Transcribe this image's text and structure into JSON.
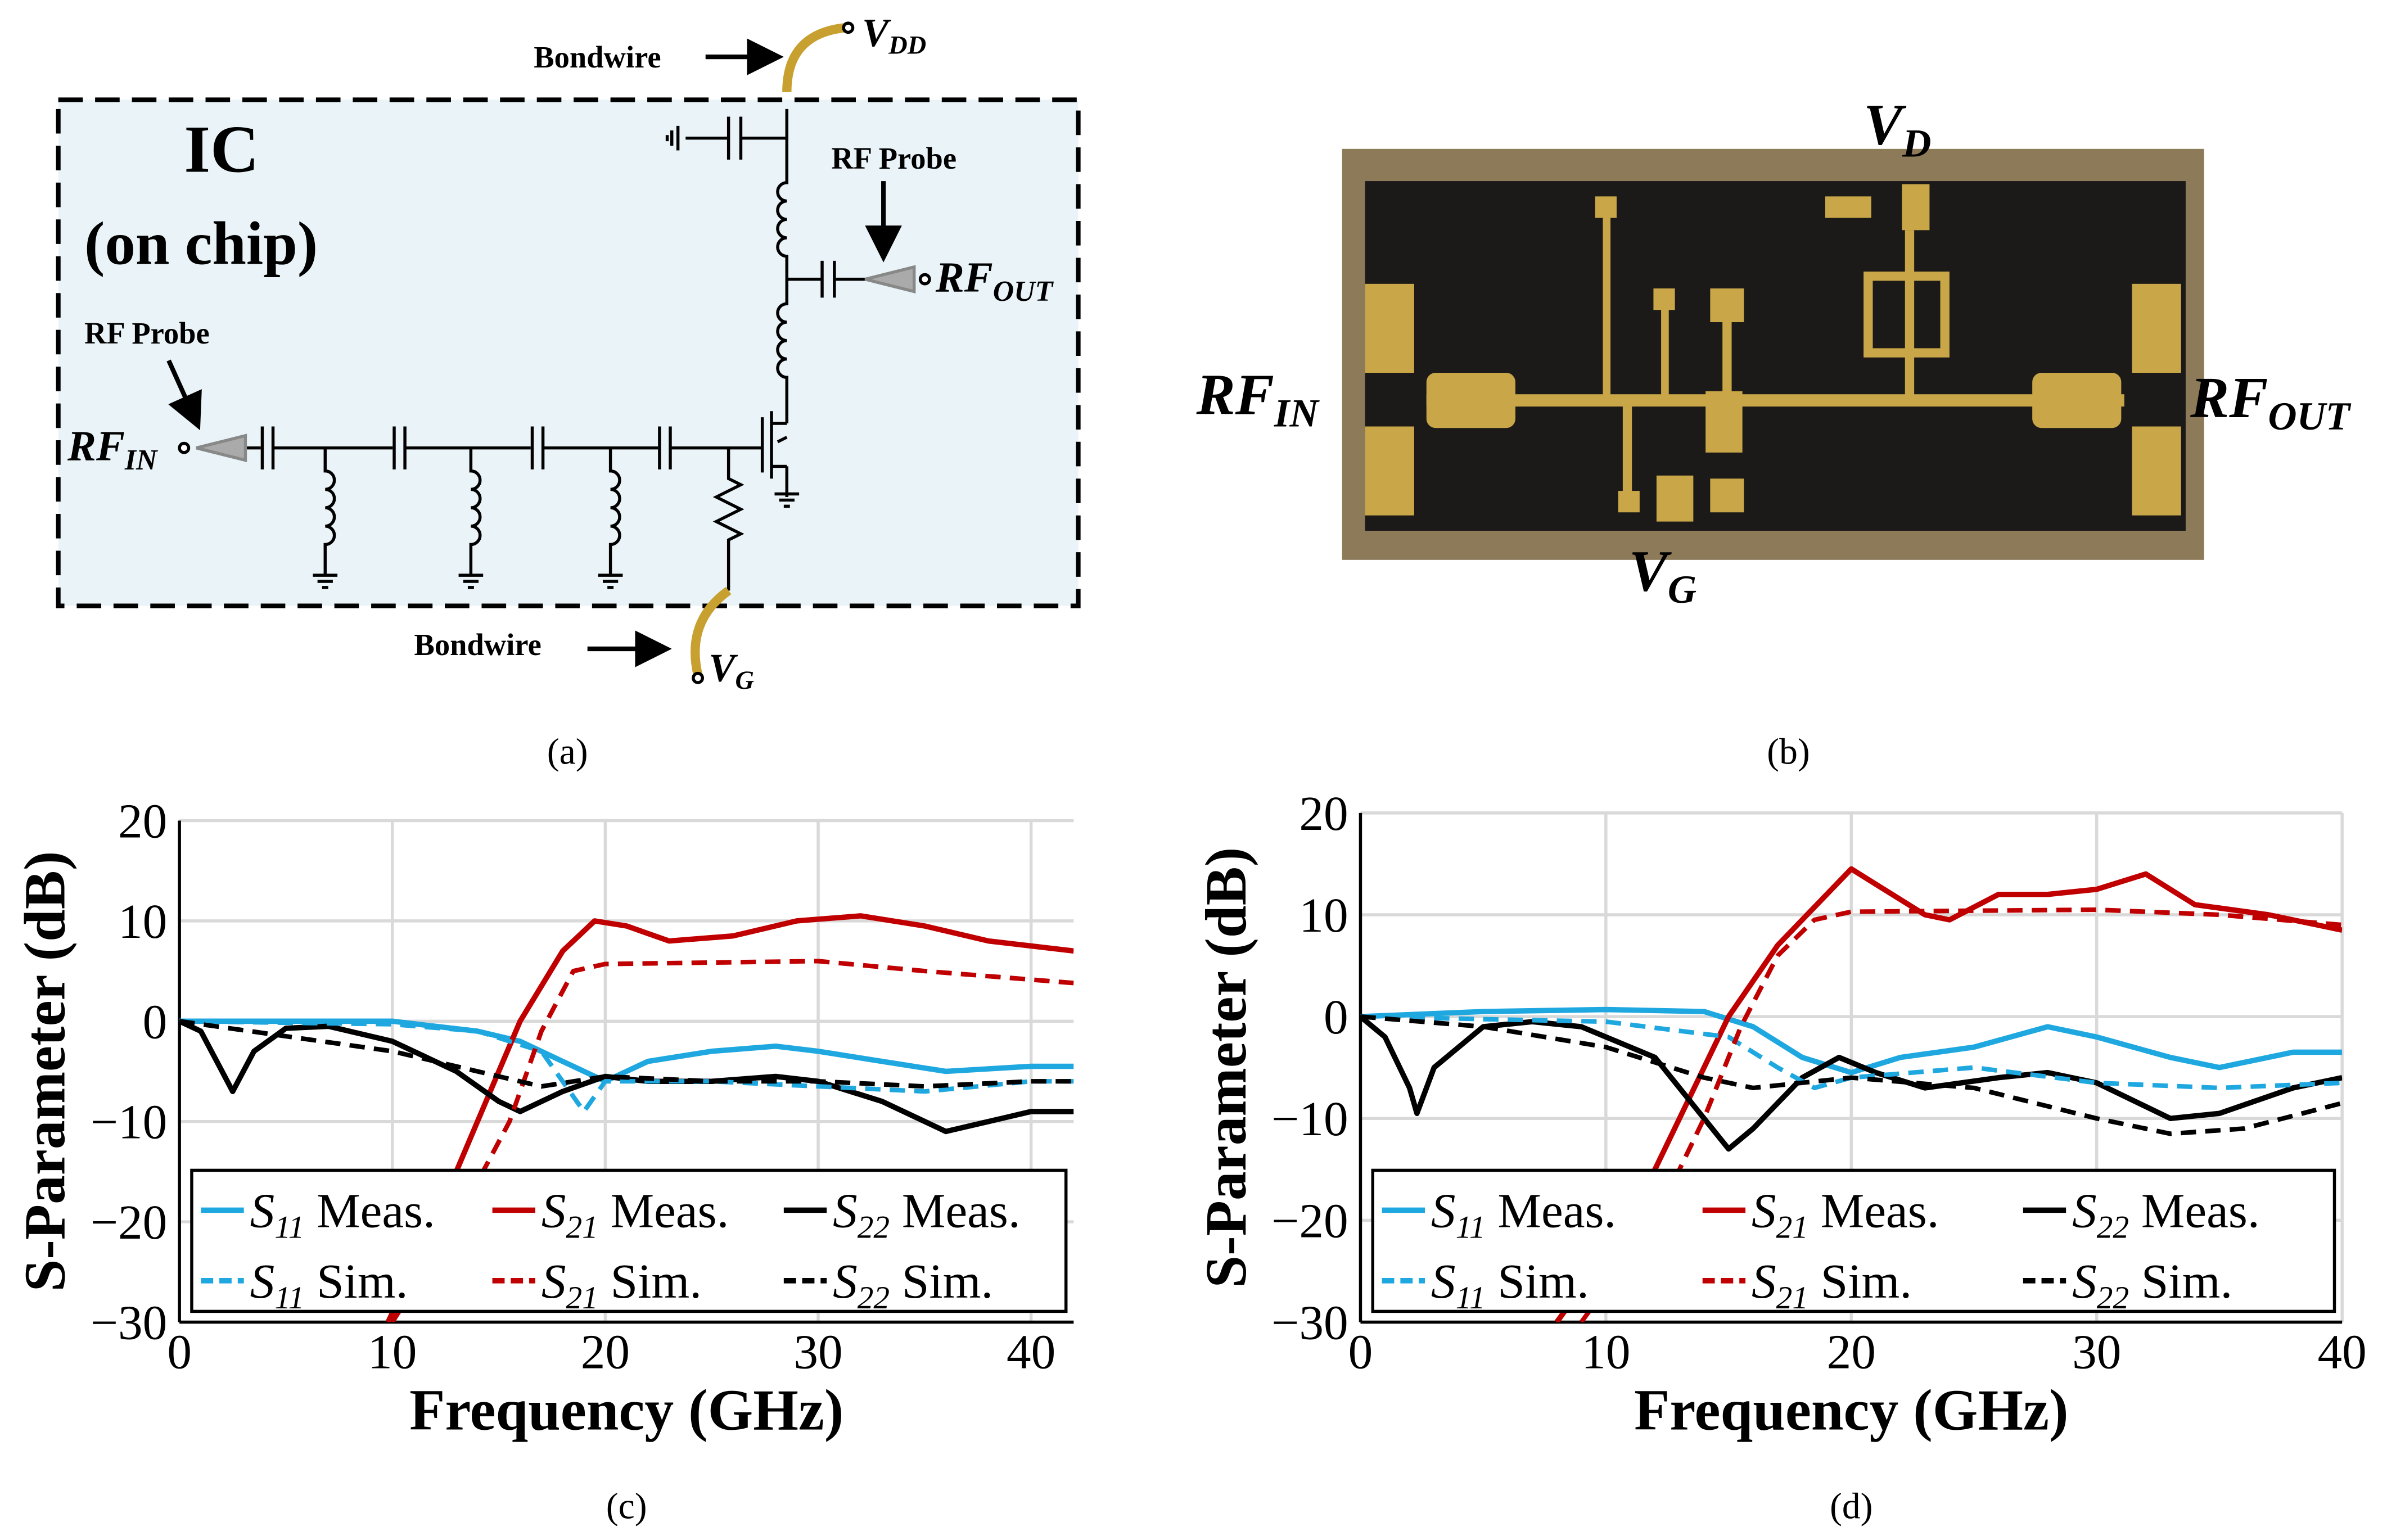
{
  "panel_a": {
    "label": "(a)",
    "ic": "IC",
    "on_chip": "(on chip)",
    "bondwire_top": "Bondwire",
    "bondwire_bottom": "Bondwire",
    "probe_in": "RF Probe",
    "probe_out": "RF Probe",
    "rf_in": {
      "main": "RF",
      "sub": "IN"
    },
    "rf_out": {
      "main": "RF",
      "sub": "OUT"
    },
    "vdd": {
      "main": "V",
      "sub": "DD"
    },
    "vg": {
      "main": "V",
      "sub": "G"
    }
  },
  "panel_b": {
    "label": "(b)",
    "rf_in": {
      "main": "RF",
      "sub": "IN"
    },
    "rf_out": {
      "main": "RF",
      "sub": "OUT"
    },
    "vd": {
      "main": "V",
      "sub": "D"
    },
    "vg": {
      "main": "V",
      "sub": "G"
    }
  },
  "chart_data": [
    {
      "type": "line",
      "label": "(c)",
      "x_label": "Frequency (GHz)",
      "y_label": "S-Parameter (dB)",
      "xlim": [
        0,
        42
      ],
      "ylim": [
        -30,
        20
      ],
      "xticks": [
        0,
        10,
        20,
        30,
        40
      ],
      "yticks": [
        {
          "value": -30,
          "label": "−30"
        },
        {
          "value": -20,
          "label": "−20"
        },
        {
          "value": -10,
          "label": "−10"
        },
        0,
        10,
        20
      ],
      "grid": true,
      "legend": "bottom",
      "series": [
        {
          "name": "S11 Meas.",
          "color": "#1fa8e0",
          "dashed": false,
          "x": [
            0,
            10,
            12,
            14,
            16,
            18,
            20,
            22,
            25,
            28,
            30,
            33,
            36,
            40,
            42
          ],
          "values": [
            0,
            0,
            -0.5,
            -1,
            -2,
            -4,
            -6,
            -4,
            -3,
            -2.5,
            -3,
            -4,
            -5,
            -4.5,
            -4.5
          ]
        },
        {
          "name": "S21 Meas.",
          "color": "#c00000",
          "dashed": false,
          "x": [
            9.8,
            12,
            14,
            16,
            18,
            19.5,
            21,
            23,
            26,
            29,
            32,
            35,
            38,
            42
          ],
          "values": [
            -30,
            -20,
            -10,
            0,
            7,
            10,
            9.5,
            8,
            8.5,
            10,
            10.5,
            9.5,
            8,
            7
          ]
        },
        {
          "name": "S22 Meas.",
          "color": "#000000",
          "dashed": false,
          "x": [
            0,
            1,
            2,
            2.5,
            3.5,
            5,
            7,
            10,
            13,
            15,
            16,
            18,
            20,
            22,
            25,
            28,
            30,
            33,
            36,
            38,
            40,
            42
          ],
          "values": [
            0,
            -1,
            -5,
            -7,
            -3,
            -0.7,
            -0.5,
            -2,
            -5,
            -8,
            -9,
            -7,
            -5.5,
            -6,
            -6,
            -5.5,
            -6,
            -8,
            -11,
            -10,
            -9,
            -9
          ]
        },
        {
          "name": "S11 Sim.",
          "color": "#1fa8e0",
          "dashed": true,
          "x": [
            0,
            10,
            14,
            17,
            19,
            20,
            25,
            30,
            35,
            40,
            42
          ],
          "values": [
            0,
            -0.3,
            -1,
            -3,
            -9,
            -6,
            -6,
            -6.5,
            -7,
            -6,
            -6
          ]
        },
        {
          "name": "S21 Sim.",
          "color": "#c00000",
          "dashed": true,
          "x": [
            10,
            13,
            15.5,
            17,
            18.5,
            20,
            30,
            35,
            42
          ],
          "values": [
            -30,
            -20,
            -10,
            -1,
            5,
            5.7,
            6,
            5,
            3.8
          ]
        },
        {
          "name": "S22 Sim.",
          "color": "#000000",
          "dashed": true,
          "x": [
            0,
            5,
            10,
            15,
            17,
            20,
            25,
            30,
            35,
            40,
            42
          ],
          "values": [
            0,
            -1.5,
            -3,
            -5.5,
            -6.5,
            -5.5,
            -6,
            -6,
            -6.5,
            -6,
            -6
          ]
        }
      ]
    },
    {
      "type": "line",
      "label": "(d)",
      "x_label": "Frequency (GHz)",
      "y_label": "S-Parameter (dB)",
      "xlim": [
        0,
        40
      ],
      "ylim": [
        -30,
        20
      ],
      "xticks": [
        0,
        10,
        20,
        30,
        40
      ],
      "yticks": [
        {
          "value": -30,
          "label": "−30"
        },
        {
          "value": -20,
          "label": "−20"
        },
        {
          "value": -10,
          "label": "−10"
        },
        0,
        10,
        20
      ],
      "grid": true,
      "legend": "bottom",
      "series": [
        {
          "name": "S11 Meas.",
          "color": "#1fa8e0",
          "dashed": false,
          "x": [
            0,
            5,
            10,
            14,
            16,
            18,
            20,
            22,
            25,
            28,
            30,
            33,
            35,
            38,
            40
          ],
          "values": [
            0,
            0.5,
            0.7,
            0.5,
            -1,
            -4,
            -5.5,
            -4,
            -3,
            -1,
            -2,
            -4,
            -5,
            -3.5,
            -3.5
          ]
        },
        {
          "name": "S21 Meas.",
          "color": "#c00000",
          "dashed": false,
          "x": [
            8,
            11,
            13,
            15,
            17,
            19,
            20,
            21,
            23,
            24,
            26,
            28,
            30,
            32,
            34,
            37,
            40
          ],
          "values": [
            -30,
            -20,
            -10,
            0,
            7,
            12,
            14.5,
            13,
            10,
            9.5,
            12,
            12,
            12.5,
            14,
            11,
            10,
            8.5
          ]
        },
        {
          "name": "S22 Meas.",
          "color": "#000000",
          "dashed": false,
          "x": [
            0,
            1,
            2,
            2.3,
            3,
            5,
            7,
            9,
            12,
            14,
            15,
            16,
            18,
            19.5,
            21,
            23,
            26,
            28,
            30,
            33,
            35,
            38,
            40
          ],
          "values": [
            0,
            -2,
            -7,
            -9.5,
            -5,
            -1,
            -0.5,
            -1,
            -4,
            -10,
            -13,
            -11,
            -6,
            -4,
            -5.5,
            -7,
            -6,
            -5.5,
            -6.5,
            -10,
            -9.5,
            -7,
            -6
          ]
        },
        {
          "name": "S11 Sim.",
          "color": "#1fa8e0",
          "dashed": true,
          "x": [
            0,
            10,
            15,
            17,
            18.5,
            20,
            25,
            30,
            35,
            40
          ],
          "values": [
            0,
            -0.5,
            -2,
            -5,
            -7,
            -6,
            -5,
            -6.5,
            -7,
            -6.5
          ]
        },
        {
          "name": "S21 Sim.",
          "color": "#c00000",
          "dashed": true,
          "x": [
            9,
            12,
            14,
            15.5,
            17,
            18.5,
            20,
            30,
            35,
            40
          ],
          "values": [
            -30,
            -20,
            -10,
            -1,
            6,
            9.5,
            10.3,
            10.5,
            10,
            9
          ]
        },
        {
          "name": "S22 Sim.",
          "color": "#000000",
          "dashed": true,
          "x": [
            0,
            5,
            10,
            14,
            16,
            20,
            25,
            30,
            33,
            36,
            40
          ],
          "values": [
            0,
            -1,
            -3,
            -6,
            -7,
            -6,
            -7,
            -10,
            -11.5,
            -11,
            -8.5
          ]
        }
      ]
    }
  ]
}
